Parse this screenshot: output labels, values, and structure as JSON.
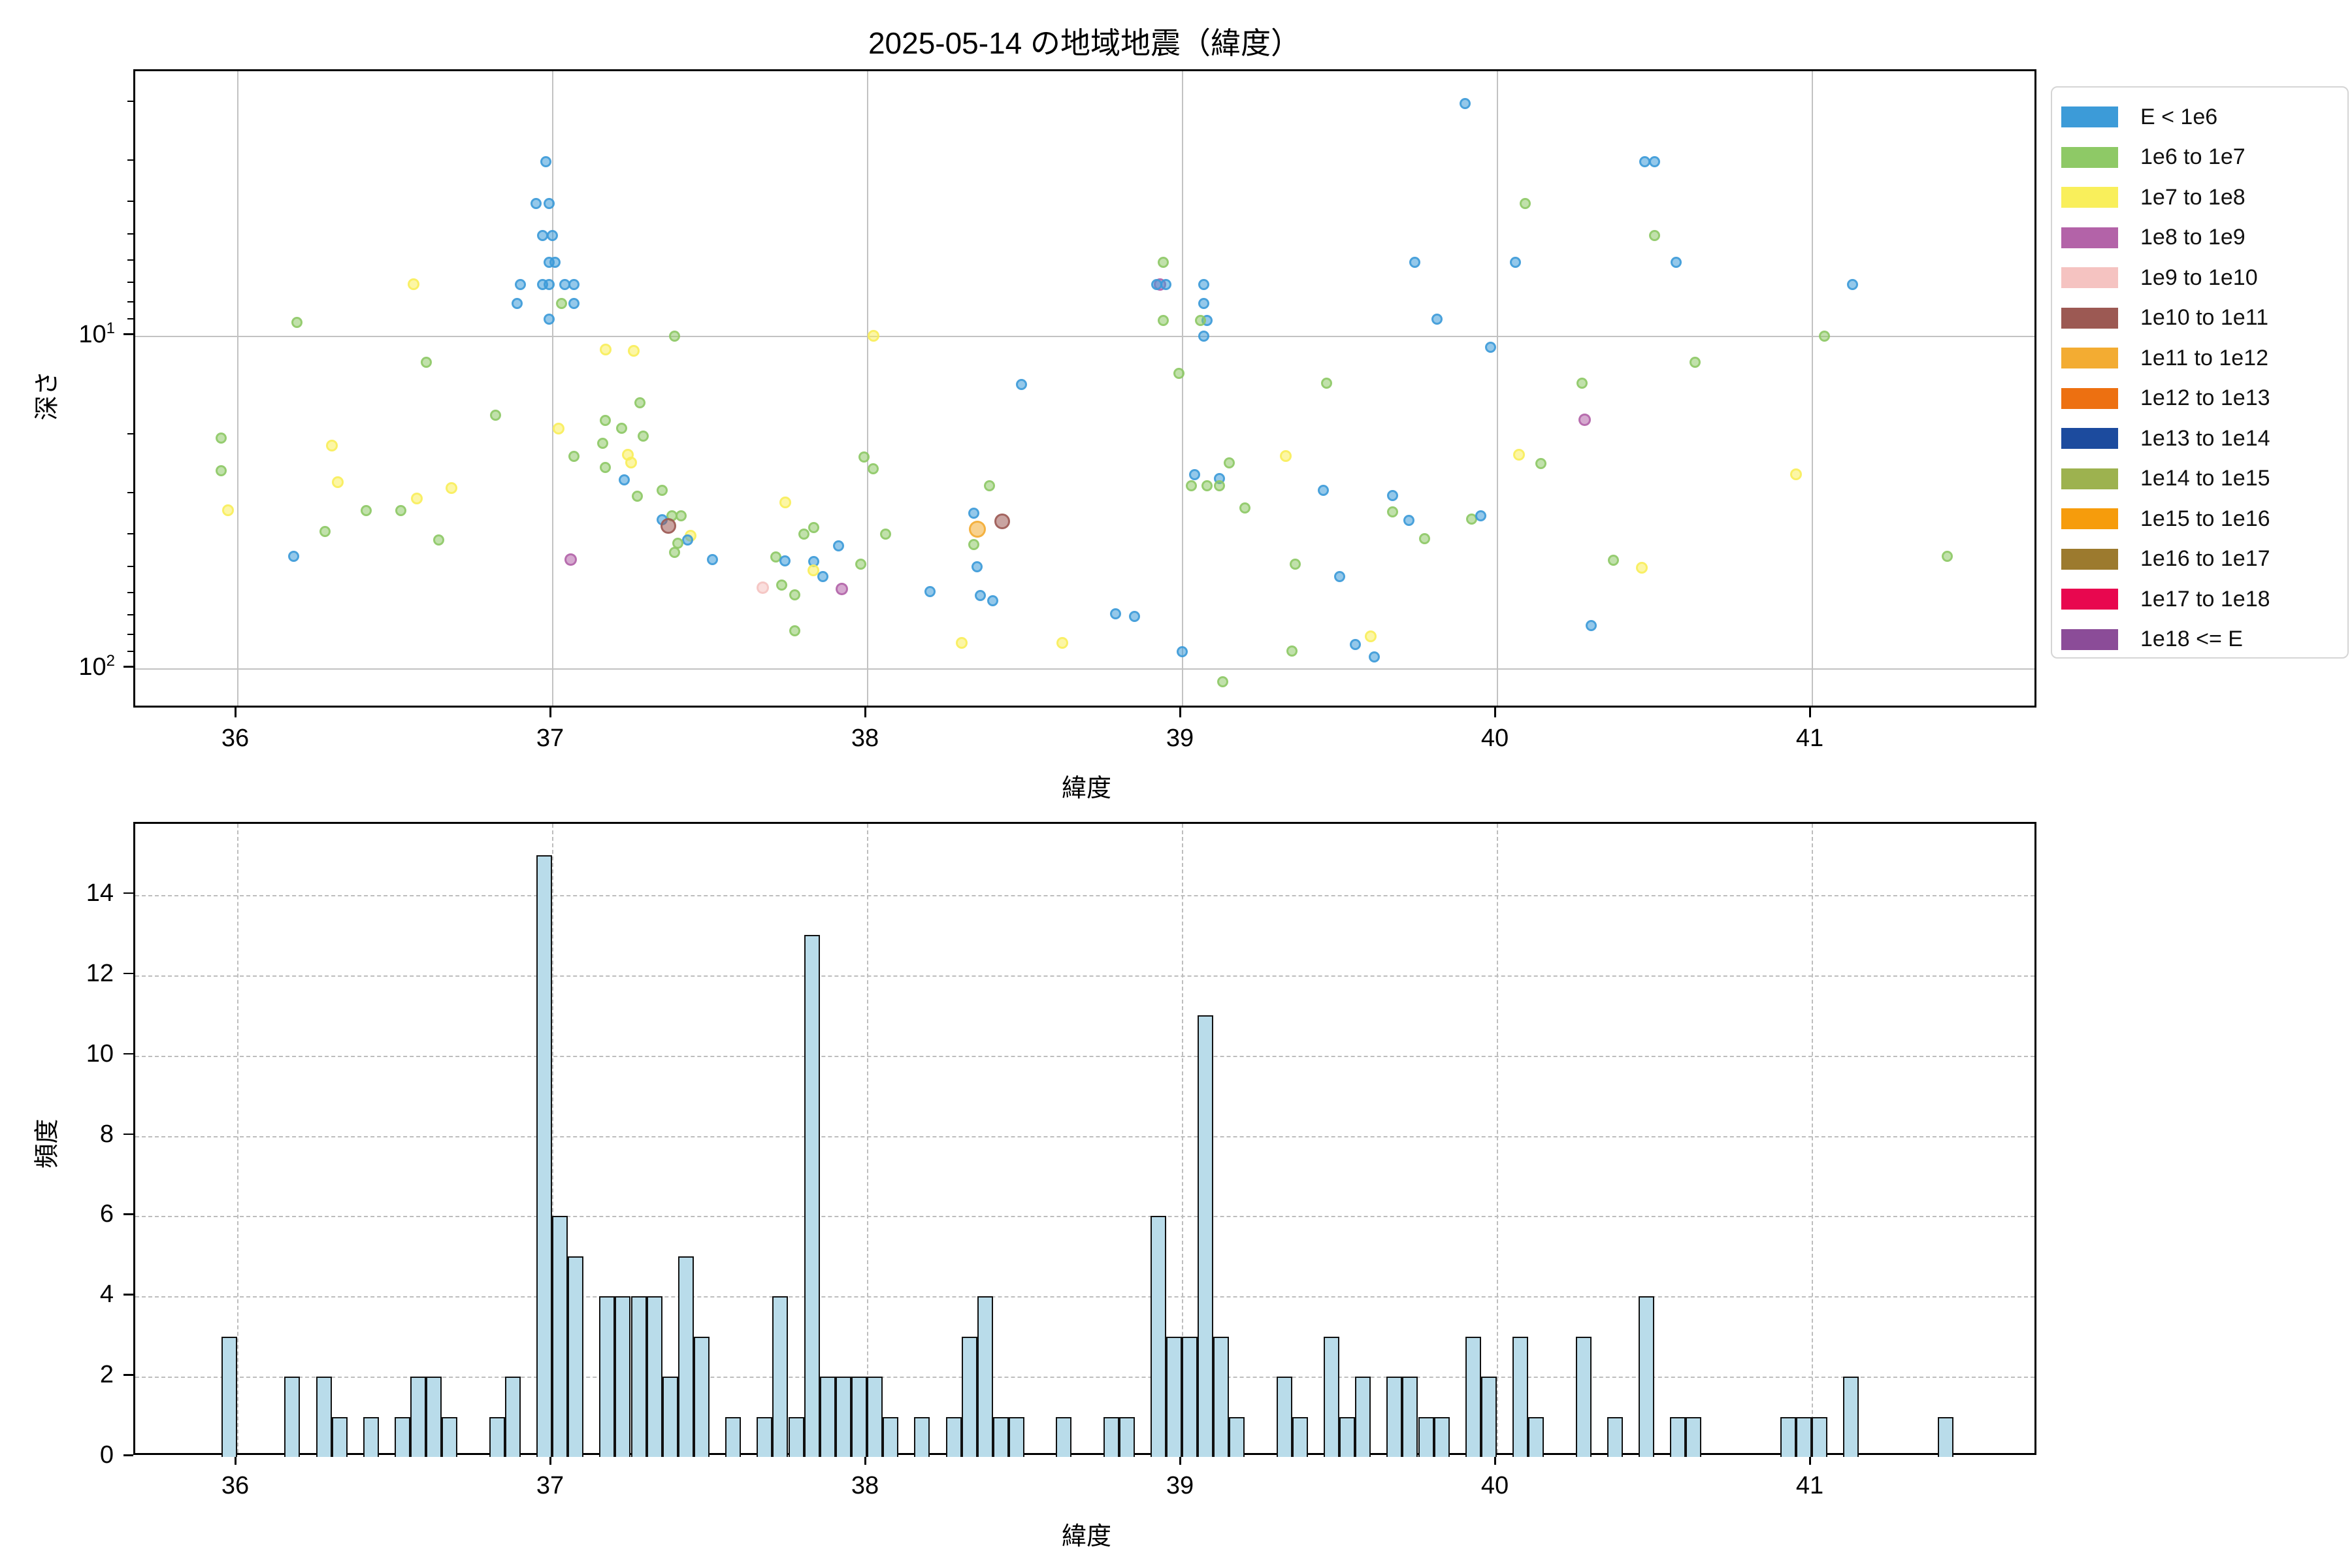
{
  "title": "2025-05-14 の地域地震（緯度）",
  "scatter_axis": {
    "xlabel": "緯度",
    "ylabel": "深さ",
    "xtick_labels": [
      "36",
      "37",
      "38",
      "39",
      "40",
      "41"
    ],
    "ytick_labels": [
      "10^1",
      "10^2"
    ]
  },
  "hist_axis": {
    "xlabel": "緯度",
    "ylabel": "頻度",
    "xtick_labels": [
      "36",
      "37",
      "38",
      "39",
      "40",
      "41"
    ],
    "ytick_labels": [
      "0",
      "2",
      "4",
      "6",
      "8",
      "10",
      "12",
      "14"
    ]
  },
  "legend": {
    "entries": [
      {
        "label": "E < 1e6",
        "color": "#3C9BD8"
      },
      {
        "label": "1e6 to 1e7",
        "color": "#8EC966"
      },
      {
        "label": "1e7 to 1e8",
        "color": "#F9EF5B"
      },
      {
        "label": "1e8 to 1e9",
        "color": "#B363A8"
      },
      {
        "label": "1e9 to 1e10",
        "color": "#F5C3C1"
      },
      {
        "label": "1e10 to 1e11",
        "color": "#9C5953"
      },
      {
        "label": "1e11 to 1e12",
        "color": "#F3AC32"
      },
      {
        "label": "1e12 to 1e13",
        "color": "#ED7011"
      },
      {
        "label": "1e13 to 1e14",
        "color": "#1C4B9E"
      },
      {
        "label": "1e14 to 1e15",
        "color": "#9DB24F"
      },
      {
        "label": "1e15 to 1e16",
        "color": "#F69C0C"
      },
      {
        "label": "1e16 to 1e17",
        "color": "#9C7A2E"
      },
      {
        "label": "1e17 to 1e18",
        "color": "#E8074F"
      },
      {
        "label": "1e18 <= E",
        "color": "#8B4C98"
      }
    ]
  },
  "category_styles": {
    "e0": {
      "label": "E < 1e6",
      "color": "#3C9BD8",
      "size": 17
    },
    "e6": {
      "label": "1e6 to 1e7",
      "color": "#8EC966",
      "size": 17
    },
    "e7": {
      "label": "1e7 to 1e8",
      "color": "#F9EF5B",
      "size": 18
    },
    "e8": {
      "label": "1e8 to 1e9",
      "color": "#B363A8",
      "size": 19
    },
    "e9": {
      "label": "1e9 to 1e10",
      "color": "#F5C3C1",
      "size": 19
    },
    "e10": {
      "label": "1e10 to 1e11",
      "color": "#9C5953",
      "size": 24
    },
    "e11": {
      "label": "1e11 to 1e12",
      "color": "#F3AC32",
      "size": 26
    }
  },
  "colors": {
    "scatter_grid": "#c2c2c2",
    "hist_grid": "#bdbdbd",
    "bar_fill": "#B9DCEA",
    "bar_edge": "#111111",
    "spine": "#000000"
  },
  "chart_data": [
    {
      "type": "scatter",
      "title": "2025-05-14 の地域地震（緯度）",
      "xlabel": "緯度",
      "ylabel": "深さ",
      "legend_title_categories": "seismic energy E bands",
      "x_is": "latitude (deg)",
      "y_is": "depth (km), log scale, inverted (shallow at top)",
      "xlim": [
        35.68,
        41.72
      ],
      "ylim": [
        1.6,
        133
      ],
      "xticks": [
        36,
        37,
        38,
        39,
        40,
        41
      ],
      "yticks": [
        10,
        100
      ],
      "grid": true,
      "points": [
        [
          36.98,
          3.0,
          "e0"
        ],
        [
          36.95,
          4.0,
          "e0"
        ],
        [
          36.99,
          4.0,
          "e0"
        ],
        [
          36.97,
          5.0,
          "e0"
        ],
        [
          37.0,
          5.0,
          "e0"
        ],
        [
          36.99,
          6.0,
          "e0"
        ],
        [
          37.01,
          6.0,
          "e0"
        ],
        [
          36.9,
          7.0,
          "e0"
        ],
        [
          36.97,
          7.0,
          "e0"
        ],
        [
          36.99,
          7.0,
          "e0"
        ],
        [
          37.04,
          7.0,
          "e0"
        ],
        [
          37.07,
          7.0,
          "e0"
        ],
        [
          36.89,
          8.0,
          "e0"
        ],
        [
          37.03,
          8.0,
          "e6"
        ],
        [
          37.07,
          8.0,
          "e0"
        ],
        [
          36.99,
          8.9,
          "e0"
        ],
        [
          37.02,
          19.0,
          "e7"
        ],
        [
          37.07,
          23.0,
          "e6"
        ],
        [
          37.06,
          47.0,
          "e8"
        ],
        [
          36.19,
          9.1,
          "e6"
        ],
        [
          36.56,
          7.0,
          "e7"
        ],
        [
          36.6,
          12.0,
          "e6"
        ],
        [
          35.95,
          20.3,
          "e6"
        ],
        [
          35.95,
          25.4,
          "e6"
        ],
        [
          35.97,
          33.5,
          "e7"
        ],
        [
          36.18,
          46.1,
          "e0"
        ],
        [
          36.28,
          38.7,
          "e6"
        ],
        [
          36.3,
          21.4,
          "e7"
        ],
        [
          36.32,
          27.6,
          "e7"
        ],
        [
          36.41,
          33.6,
          "e6"
        ],
        [
          36.52,
          33.6,
          "e6"
        ],
        [
          36.57,
          30.8,
          "e7"
        ],
        [
          36.68,
          28.7,
          "e7"
        ],
        [
          36.64,
          41.2,
          "e6"
        ],
        [
          36.82,
          17.3,
          "e6"
        ],
        [
          37.39,
          10.0,
          "e6"
        ],
        [
          37.17,
          11.0,
          "e7"
        ],
        [
          37.26,
          11.1,
          "e7"
        ],
        [
          37.28,
          15.9,
          "e6"
        ],
        [
          37.17,
          18.0,
          "e6"
        ],
        [
          37.22,
          19.0,
          "e6"
        ],
        [
          37.29,
          20.0,
          "e6"
        ],
        [
          37.16,
          21.0,
          "e6"
        ],
        [
          37.17,
          24.9,
          "e6"
        ],
        [
          37.24,
          22.8,
          "e7"
        ],
        [
          37.25,
          24.1,
          "e7"
        ],
        [
          37.23,
          27.1,
          "e0"
        ],
        [
          37.27,
          30.3,
          "e6"
        ],
        [
          37.35,
          29.2,
          "e6"
        ],
        [
          37.38,
          34.8,
          "e6"
        ],
        [
          37.41,
          34.8,
          "e6"
        ],
        [
          37.35,
          35.8,
          "e0"
        ],
        [
          37.37,
          37.3,
          "e10"
        ],
        [
          37.44,
          39.9,
          "e7"
        ],
        [
          37.43,
          41.2,
          "e0"
        ],
        [
          37.4,
          42.0,
          "e6"
        ],
        [
          37.39,
          44.9,
          "e6"
        ],
        [
          37.51,
          47.0,
          "e0"
        ],
        [
          37.67,
          57.1,
          "e9"
        ],
        [
          37.71,
          46.2,
          "e6"
        ],
        [
          37.73,
          56.1,
          "e6"
        ],
        [
          37.74,
          47.6,
          "e0"
        ],
        [
          37.74,
          31.7,
          "e7"
        ],
        [
          37.8,
          39.4,
          "e6"
        ],
        [
          37.83,
          37.8,
          "e6"
        ],
        [
          37.83,
          47.8,
          "e0"
        ],
        [
          37.83,
          50.7,
          "e7"
        ],
        [
          37.86,
          52.9,
          "e0"
        ],
        [
          37.77,
          60.0,
          "e6"
        ],
        [
          37.77,
          77.0,
          "e6"
        ],
        [
          37.92,
          57.8,
          "e8"
        ],
        [
          37.91,
          42.9,
          "e0"
        ],
        [
          38.02,
          10.0,
          "e7"
        ],
        [
          37.99,
          23.1,
          "e6"
        ],
        [
          38.02,
          25.1,
          "e6"
        ],
        [
          38.06,
          39.4,
          "e6"
        ],
        [
          37.98,
          48.5,
          "e6"
        ],
        [
          38.2,
          58.9,
          "e0"
        ],
        [
          38.49,
          14.0,
          "e0"
        ],
        [
          38.39,
          28.2,
          "e6"
        ],
        [
          38.34,
          34.2,
          "e0"
        ],
        [
          38.43,
          36.1,
          "e10"
        ],
        [
          38.35,
          38.2,
          "e11"
        ],
        [
          38.34,
          42.4,
          "e6"
        ],
        [
          38.35,
          49.4,
          "e0"
        ],
        [
          38.36,
          60.5,
          "e0"
        ],
        [
          38.4,
          62.5,
          "e0"
        ],
        [
          38.3,
          83.8,
          "e7"
        ],
        [
          38.62,
          83.9,
          "e7"
        ],
        [
          38.79,
          68.4,
          "e0"
        ],
        [
          38.85,
          69.7,
          "e0"
        ],
        [
          39.0,
          89.3,
          "e0"
        ],
        [
          39.13,
          109.5,
          "e6"
        ],
        [
          38.94,
          6.0,
          "e6"
        ],
        [
          38.93,
          7.0,
          "e8"
        ],
        [
          38.92,
          7.0,
          "e0"
        ],
        [
          38.95,
          7.0,
          "e0"
        ],
        [
          38.94,
          9.0,
          "e6"
        ],
        [
          38.99,
          13.0,
          "e6"
        ],
        [
          39.07,
          7.0,
          "e0"
        ],
        [
          39.07,
          8.0,
          "e0"
        ],
        [
          39.08,
          9.0,
          "e0"
        ],
        [
          39.06,
          9.0,
          "e6"
        ],
        [
          39.07,
          10.0,
          "e0"
        ],
        [
          39.04,
          26.1,
          "e0"
        ],
        [
          39.12,
          26.9,
          "e0"
        ],
        [
          39.03,
          28.3,
          "e6"
        ],
        [
          39.08,
          28.3,
          "e6"
        ],
        [
          39.12,
          28.3,
          "e6"
        ],
        [
          39.15,
          24.1,
          "e6"
        ],
        [
          39.2,
          32.9,
          "e6"
        ],
        [
          39.33,
          23.0,
          "e7"
        ],
        [
          39.46,
          13.9,
          "e6"
        ],
        [
          39.45,
          29.2,
          "e0"
        ],
        [
          39.36,
          48.7,
          "e6"
        ],
        [
          39.5,
          52.9,
          "e0"
        ],
        [
          39.67,
          30.2,
          "e0"
        ],
        [
          39.67,
          33.9,
          "e6"
        ],
        [
          39.72,
          35.9,
          "e0"
        ],
        [
          39.77,
          40.7,
          "e6"
        ],
        [
          39.92,
          35.6,
          "e6"
        ],
        [
          39.95,
          34.7,
          "e0"
        ],
        [
          39.6,
          80.1,
          "e7"
        ],
        [
          39.55,
          84.7,
          "e0"
        ],
        [
          39.61,
          92.2,
          "e0"
        ],
        [
          39.35,
          88.7,
          "e6"
        ],
        [
          39.9,
          2.0,
          "e0"
        ],
        [
          39.74,
          6.0,
          "e0"
        ],
        [
          39.81,
          8.9,
          "e0"
        ],
        [
          39.98,
          10.8,
          "e0"
        ],
        [
          40.09,
          4.0,
          "e6"
        ],
        [
          40.06,
          6.0,
          "e0"
        ],
        [
          40.07,
          22.8,
          "e7"
        ],
        [
          40.14,
          24.2,
          "e6"
        ],
        [
          40.27,
          13.9,
          "e6"
        ],
        [
          40.28,
          17.9,
          "e8"
        ],
        [
          40.3,
          74.2,
          "e0"
        ],
        [
          40.37,
          47.4,
          "e6"
        ],
        [
          40.46,
          49.9,
          "e7"
        ],
        [
          40.47,
          3.0,
          "e0"
        ],
        [
          40.5,
          3.0,
          "e0"
        ],
        [
          40.5,
          5.0,
          "e6"
        ],
        [
          40.57,
          6.0,
          "e0"
        ],
        [
          41.13,
          7.0,
          "e0"
        ],
        [
          41.04,
          10.0,
          "e6"
        ],
        [
          40.63,
          12.0,
          "e6"
        ],
        [
          40.95,
          26.1,
          "e7"
        ],
        [
          41.43,
          46.0,
          "e6"
        ]
      ]
    },
    {
      "type": "bar",
      "subtype": "histogram",
      "xlabel": "緯度",
      "ylabel": "頻度",
      "xticks": [
        36,
        37,
        38,
        39,
        40,
        41
      ],
      "yticks": [
        0,
        2,
        4,
        6,
        8,
        10,
        12,
        14
      ],
      "xlim": [
        35.68,
        41.72
      ],
      "ylim": [
        0,
        15.75
      ],
      "grid": "dashed",
      "bin_width": 0.05,
      "bins_lat_count": [
        [
          35.95,
          3
        ],
        [
          36.15,
          2
        ],
        [
          36.25,
          2
        ],
        [
          36.3,
          1
        ],
        [
          36.4,
          1
        ],
        [
          36.5,
          1
        ],
        [
          36.55,
          2
        ],
        [
          36.6,
          2
        ],
        [
          36.65,
          1
        ],
        [
          36.8,
          1
        ],
        [
          36.85,
          2
        ],
        [
          36.95,
          15
        ],
        [
          37.0,
          6
        ],
        [
          37.05,
          5
        ],
        [
          37.15,
          4
        ],
        [
          37.2,
          4
        ],
        [
          37.25,
          4
        ],
        [
          37.3,
          4
        ],
        [
          37.35,
          2
        ],
        [
          37.4,
          5
        ],
        [
          37.45,
          3
        ],
        [
          37.55,
          1
        ],
        [
          37.65,
          1
        ],
        [
          37.7,
          4
        ],
        [
          37.75,
          1
        ],
        [
          37.8,
          13
        ],
        [
          37.85,
          2
        ],
        [
          37.9,
          2
        ],
        [
          37.95,
          2
        ],
        [
          38.0,
          2
        ],
        [
          38.05,
          1
        ],
        [
          38.15,
          1
        ],
        [
          38.25,
          1
        ],
        [
          38.3,
          3
        ],
        [
          38.35,
          4
        ],
        [
          38.4,
          1
        ],
        [
          38.45,
          1
        ],
        [
          38.6,
          1
        ],
        [
          38.75,
          1
        ],
        [
          38.8,
          1
        ],
        [
          38.9,
          6
        ],
        [
          38.95,
          3
        ],
        [
          39.0,
          3
        ],
        [
          39.05,
          11
        ],
        [
          39.1,
          3
        ],
        [
          39.15,
          1
        ],
        [
          39.3,
          2
        ],
        [
          39.35,
          1
        ],
        [
          39.45,
          3
        ],
        [
          39.5,
          1
        ],
        [
          39.55,
          2
        ],
        [
          39.65,
          2
        ],
        [
          39.7,
          2
        ],
        [
          39.75,
          1
        ],
        [
          39.8,
          1
        ],
        [
          39.9,
          3
        ],
        [
          39.95,
          2
        ],
        [
          40.05,
          3
        ],
        [
          40.1,
          1
        ],
        [
          40.25,
          3
        ],
        [
          40.35,
          1
        ],
        [
          40.45,
          4
        ],
        [
          40.55,
          1
        ],
        [
          40.6,
          1
        ],
        [
          40.9,
          1
        ],
        [
          40.95,
          1
        ],
        [
          41.0,
          1
        ],
        [
          41.1,
          2
        ],
        [
          41.4,
          1
        ]
      ]
    }
  ]
}
